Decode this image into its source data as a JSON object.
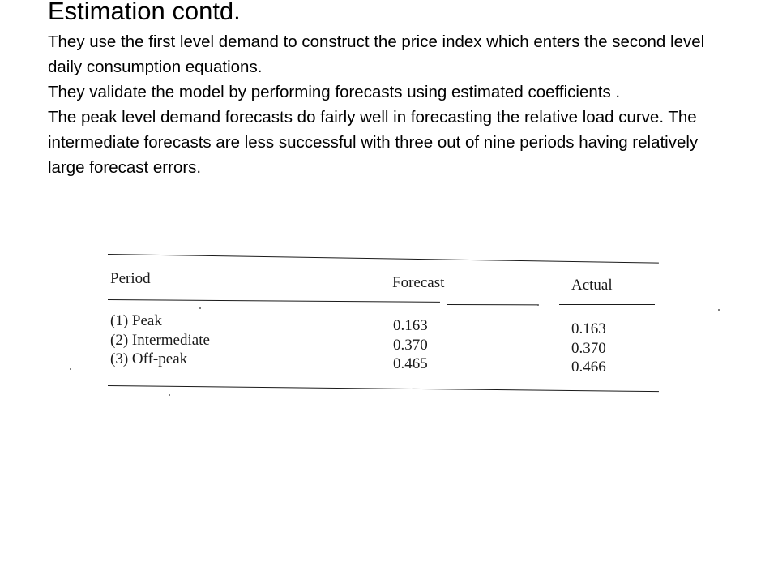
{
  "slide": {
    "title": "Estimation contd.",
    "paragraphs": [
      "They use the first level demand to construct the price index which enters the second level daily consumption equations.",
      "They validate the model by performing forecasts using estimated coefficients .",
      "The peak level demand forecasts do fairly well in forecasting the relative load curve. The intermediate forecasts are less successful with three out of nine periods having relatively large forecast errors."
    ]
  },
  "table": {
    "headers": {
      "period": "Period",
      "forecast": "Forecast",
      "actual": "Actual"
    },
    "rows": [
      {
        "period": "(1) Peak",
        "forecast": "0.163",
        "actual": "0.163"
      },
      {
        "period": "(2) Intermediate",
        "forecast": "0.370",
        "actual": "0.370"
      },
      {
        "period": "(3) Off-peak",
        "forecast": "0.465",
        "actual": "0.466"
      }
    ]
  },
  "colors": {
    "background": "#ffffff",
    "text": "#000000",
    "scan_ink": "#1a1a1a"
  }
}
